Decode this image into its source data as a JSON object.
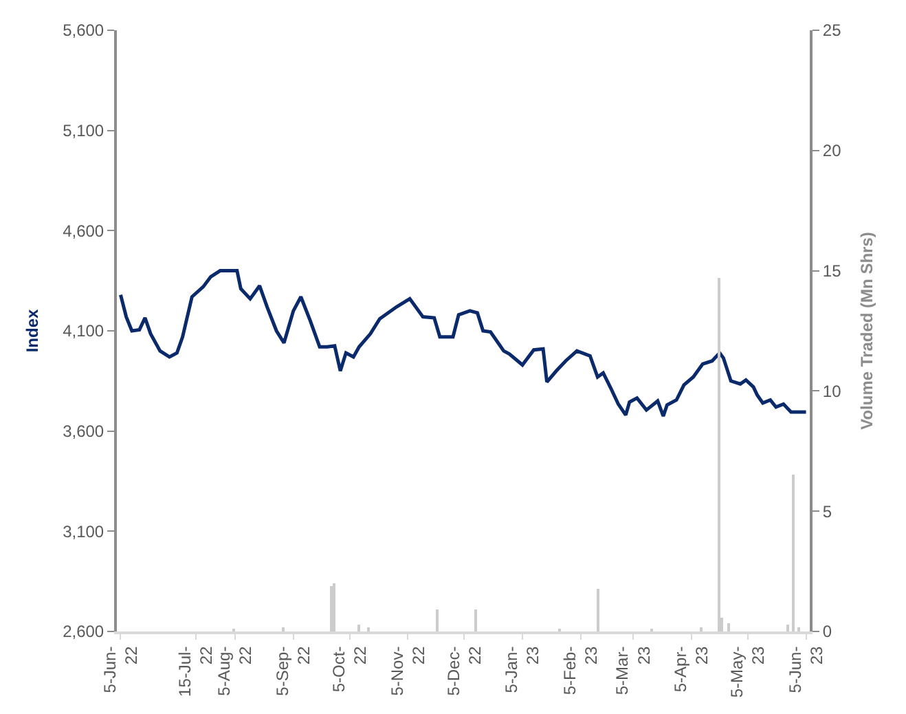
{
  "chart_data": {
    "type": "line",
    "ylabel": "Index",
    "y2label": "Volume Traded (Mn Shrs)",
    "xlim": [
      "2022-06-03",
      "2023-06-07"
    ],
    "xticks": [
      {
        "value": "2022-06-05",
        "label": "5-Jun-22"
      },
      {
        "value": "2022-07-15",
        "label": "15-Jul-22"
      },
      {
        "value": "2022-08-05",
        "label": "5-Aug-22"
      },
      {
        "value": "2022-09-05",
        "label": "5-Sep-22"
      },
      {
        "value": "2022-10-05",
        "label": "5-Oct-22"
      },
      {
        "value": "2022-11-05",
        "label": "5-Nov-22"
      },
      {
        "value": "2022-12-05",
        "label": "5-Dec-22"
      },
      {
        "value": "2023-01-05",
        "label": "5-Jan-23"
      },
      {
        "value": "2023-02-05",
        "label": "5-Feb-23"
      },
      {
        "value": "2023-03-05",
        "label": "5-Mar-23"
      },
      {
        "value": "2023-04-05",
        "label": "5-Apr-23"
      },
      {
        "value": "2023-05-05",
        "label": "5-May-23"
      },
      {
        "value": "2023-06-05",
        "label": "5-Jun-23"
      }
    ],
    "ylim": [
      2600,
      5600
    ],
    "yticks": [
      {
        "value": 2600,
        "label": "2,600"
      },
      {
        "value": 3100,
        "label": "3,100"
      },
      {
        "value": 3600,
        "label": "3,600"
      },
      {
        "value": 4100,
        "label": "4,100"
      },
      {
        "value": 4600,
        "label": "4,600"
      },
      {
        "value": 5100,
        "label": "5,100"
      },
      {
        "value": 5600,
        "label": "5,600"
      }
    ],
    "y2lim": [
      0,
      25
    ],
    "y2ticks": [
      0,
      5,
      10,
      15,
      20,
      25
    ],
    "marker": "none",
    "line_style": "solid",
    "series": [
      {
        "type": "bar",
        "axis": "y2",
        "color": "#cccccc",
        "x": [
          "2022-08-04",
          "2022-08-31",
          "2022-09-25",
          "2022-09-27",
          "2022-10-10",
          "2022-10-15",
          "2022-11-21",
          "2022-12-11",
          "2023-01-25",
          "2023-02-14",
          "2023-03-15",
          "2023-04-10",
          "2023-04-20",
          "2023-04-21",
          "2023-04-25",
          "2023-05-26",
          "2023-05-29",
          "2023-06-01"
        ],
        "values": [
          0.1,
          0.15,
          1.9,
          2.0,
          0.3,
          0.2,
          0.9,
          0.9,
          0.1,
          1.8,
          0.1,
          0.15,
          14.7,
          0.6,
          0.35,
          0.3,
          6.5,
          0.2
        ]
      },
      {
        "color": "#0b2a6b",
        "x": [
          "2022-06-05",
          "2022-06-08",
          "2022-06-11",
          "2022-06-15",
          "2022-06-18",
          "2022-06-21",
          "2022-06-26",
          "2022-07-01",
          "2022-07-05",
          "2022-07-08",
          "2022-07-13",
          "2022-07-19",
          "2022-07-23",
          "2022-07-28",
          "2022-08-06",
          "2022-08-08",
          "2022-08-13",
          "2022-08-18",
          "2022-08-22",
          "2022-08-27",
          "2022-08-31",
          "2022-09-05",
          "2022-09-09",
          "2022-09-14",
          "2022-09-19",
          "2022-09-23",
          "2022-09-27",
          "2022-09-30",
          "2022-10-03",
          "2022-10-07",
          "2022-10-10",
          "2022-10-16",
          "2022-10-21",
          "2022-10-30",
          "2022-11-06",
          "2022-11-13",
          "2022-11-19",
          "2022-11-22",
          "2022-11-29",
          "2022-12-02",
          "2022-12-08",
          "2022-12-12",
          "2022-12-15",
          "2022-12-19",
          "2022-12-26",
          "2022-12-29",
          "2023-01-05",
          "2023-01-11",
          "2023-01-16",
          "2023-01-18",
          "2023-01-23",
          "2023-01-28",
          "2023-02-03",
          "2023-02-10",
          "2023-02-14",
          "2023-02-17",
          "2023-02-21",
          "2023-02-25",
          "2023-03-01",
          "2023-03-03",
          "2023-03-07",
          "2023-03-12",
          "2023-03-18",
          "2023-03-21",
          "2023-03-23",
          "2023-03-28",
          "2023-04-01",
          "2023-04-06",
          "2023-04-11",
          "2023-04-16",
          "2023-04-20",
          "2023-04-22",
          "2023-04-26",
          "2023-05-01",
          "2023-05-04",
          "2023-05-08",
          "2023-05-10",
          "2023-05-13",
          "2023-05-17",
          "2023-05-20",
          "2023-05-24",
          "2023-05-28",
          "2023-05-31",
          "2023-06-05"
        ],
        "values": [
          4280,
          4170,
          4100,
          4105,
          4165,
          4085,
          4000,
          3970,
          3990,
          4070,
          4270,
          4320,
          4370,
          4400,
          4400,
          4310,
          4260,
          4325,
          4220,
          4100,
          4040,
          4200,
          4270,
          4150,
          4020,
          4020,
          4025,
          3900,
          3990,
          3970,
          4020,
          4085,
          4160,
          4220,
          4260,
          4170,
          4165,
          4070,
          4070,
          4180,
          4200,
          4190,
          4100,
          4095,
          4000,
          3985,
          3930,
          4005,
          4010,
          3845,
          3900,
          3950,
          4000,
          3975,
          3870,
          3890,
          3815,
          3735,
          3680,
          3745,
          3765,
          3705,
          3750,
          3675,
          3730,
          3755,
          3830,
          3870,
          3935,
          3950,
          3990,
          3965,
          3850,
          3835,
          3855,
          3820,
          3780,
          3740,
          3755,
          3720,
          3735,
          3695,
          3695,
          3695
        ]
      }
    ]
  }
}
